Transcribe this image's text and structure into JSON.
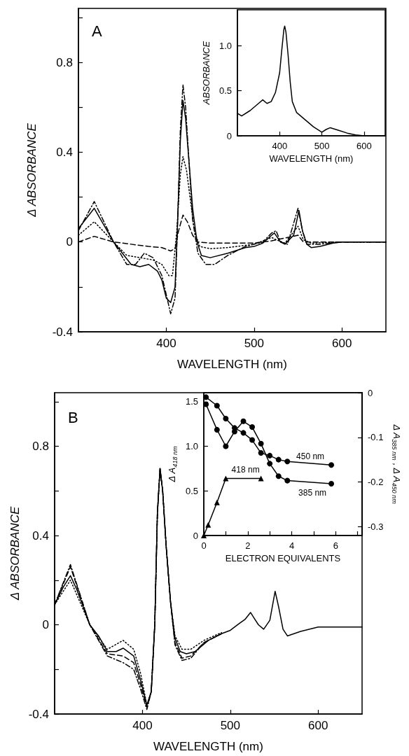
{
  "chart_data": [
    {
      "type": "line",
      "xlabel": "WAVELENGTH (nm)",
      "ylabel": "Δ ABSORBANCE",
      "annotations": [
        "A"
      ],
      "xlim": [
        300,
        650
      ],
      "xticks": [
        400,
        500,
        600
      ],
      "ylim": [
        -0.4,
        1.04
      ],
      "yticks": [
        -0.4,
        {
          "value": -0.2,
          "label": null
        },
        0,
        {
          "value": 0.2,
          "label": null
        },
        0.4,
        {
          "value": 0.6,
          "label": null
        },
        0.8,
        {
          "value": 1,
          "label": null
        }
      ],
      "grid": false,
      "legend": false,
      "marker": "none",
      "series": [
        {
          "color": "#000000",
          "line_style": "solid",
          "x": [
            300,
            318,
            340,
            360,
            370,
            380,
            390,
            395,
            400,
            405,
            410,
            413,
            416,
            419,
            422,
            426,
            430,
            435,
            440,
            450,
            470,
            490,
            500,
            510,
            520,
            523,
            530,
            535,
            545,
            551,
            555,
            560,
            565,
            575,
            590,
            600,
            650
          ],
          "values": [
            0.06,
            0.15,
            0,
            -0.1,
            -0.11,
            -0.1,
            -0.13,
            -0.17,
            -0.25,
            -0.27,
            -0.2,
            0.1,
            0.45,
            0.63,
            0.55,
            0.35,
            0.15,
            0,
            -0.06,
            -0.07,
            -0.05,
            -0.025,
            -0.02,
            -0.005,
            0.03,
            0.04,
            0,
            -0.01,
            0.03,
            0.14,
            0.05,
            -0.01,
            -0.025,
            -0.02,
            -0.005,
            0,
            0
          ]
        },
        {
          "color": "#000000",
          "line_style": "dotted",
          "x": [
            300,
            318,
            340,
            355,
            370,
            385,
            395,
            403,
            407,
            412,
            416,
            419,
            423,
            427,
            432,
            438,
            450,
            470,
            500,
            520,
            525,
            535,
            550,
            556,
            565,
            600,
            650
          ],
          "values": [
            0.03,
            0.09,
            0,
            -0.06,
            -0.07,
            -0.08,
            -0.1,
            -0.15,
            -0.15,
            0.05,
            0.3,
            0.38,
            0.32,
            0.2,
            0.05,
            -0.02,
            -0.03,
            -0.025,
            -0.01,
            0.02,
            0.01,
            -0.005,
            0.07,
            0.01,
            -0.005,
            0,
            0
          ]
        },
        {
          "color": "#000000",
          "line_style": "dashed",
          "x": [
            300,
            318,
            340,
            360,
            380,
            395,
            405,
            410,
            414,
            419,
            424,
            430,
            436,
            450,
            500,
            520,
            550,
            556,
            650
          ],
          "values": [
            0,
            0.025,
            0,
            -0.01,
            -0.02,
            -0.025,
            -0.04,
            -0.03,
            0.05,
            0.12,
            0.09,
            0.03,
            0,
            -0.005,
            -0.005,
            0.005,
            0.03,
            0,
            0
          ]
        },
        {
          "color": "#000000",
          "line_style": "dashdot",
          "x": [
            300,
            318,
            340,
            355,
            365,
            375,
            385,
            395,
            405,
            410,
            413,
            416,
            419,
            422,
            426,
            430,
            436,
            445,
            455,
            470,
            490,
            510,
            520,
            525,
            530,
            538,
            550,
            555,
            560,
            575,
            600,
            650
          ],
          "values": [
            0.05,
            0.18,
            0,
            -0.1,
            -0.1,
            -0.05,
            -0.07,
            -0.15,
            -0.32,
            -0.25,
            0.1,
            0.5,
            0.7,
            0.6,
            0.35,
            0.1,
            -0.05,
            -0.1,
            -0.1,
            -0.06,
            -0.02,
            0,
            0.04,
            0.05,
            0,
            -0.01,
            0.15,
            0.05,
            -0.01,
            -0.01,
            0,
            0
          ]
        }
      ]
    },
    {
      "type": "line",
      "xlabel": "WAVELENGTH (nm)",
      "ylabel": "ABSORBANCE",
      "xlim": [
        300,
        650
      ],
      "xticks": [
        400,
        500,
        600
      ],
      "ylim": [
        0,
        1.4
      ],
      "yticks": [
        0,
        0.5,
        {
          "value": 1,
          "label": "1.0"
        }
      ],
      "grid": false,
      "legend": false,
      "marker": "none",
      "series": [
        {
          "color": "#000000",
          "line_style": "solid",
          "x": [
            300,
            310,
            330,
            350,
            360,
            370,
            380,
            390,
            400,
            405,
            410,
            412,
            415,
            420,
            425,
            430,
            440,
            460,
            480,
            500,
            510,
            520,
            540,
            560,
            580,
            600,
            650
          ],
          "values": [
            0.25,
            0.22,
            0.28,
            0.36,
            0.4,
            0.36,
            0.38,
            0.48,
            0.7,
            0.95,
            1.18,
            1.22,
            1.15,
            0.9,
            0.6,
            0.38,
            0.26,
            0.18,
            0.1,
            0.04,
            0.07,
            0.09,
            0.06,
            0.03,
            0.01,
            0,
            0
          ]
        }
      ]
    },
    {
      "type": "line",
      "xlabel": "WAVELENGTH (nm)",
      "ylabel": "Δ ABSORBANCE",
      "annotations": [
        "B"
      ],
      "xlim": [
        300,
        650
      ],
      "xticks": [
        400,
        500,
        600
      ],
      "ylim": [
        -0.4,
        1.04
      ],
      "yticks": [
        -0.4,
        {
          "value": -0.2,
          "label": null
        },
        0,
        {
          "value": 0.2,
          "label": null
        },
        0.4,
        {
          "value": 0.6,
          "label": null
        },
        0.8,
        {
          "value": 1,
          "label": null
        }
      ],
      "grid": false,
      "legend": false,
      "marker": "none",
      "series": [
        {
          "color": "#000000",
          "line_style": "dotted",
          "x": [
            300,
            318,
            340,
            360,
            378,
            390,
            398,
            405,
            410,
            414,
            417,
            420,
            423,
            427,
            432,
            437,
            445,
            455,
            470,
            490
          ],
          "values": [
            0.09,
            0.2,
            0,
            -0.11,
            -0.07,
            -0.11,
            -0.22,
            -0.36,
            -0.3,
            0,
            0.5,
            0.7,
            0.6,
            0.35,
            0.1,
            -0.05,
            -0.11,
            -0.11,
            -0.07,
            -0.035
          ]
        },
        {
          "color": "#000000",
          "line_style": "dashed",
          "x": [
            300,
            318,
            340,
            360,
            378,
            390,
            398,
            405,
            410,
            414,
            417,
            420,
            423,
            427,
            432,
            437,
            445,
            455,
            470,
            490
          ],
          "values": [
            0.09,
            0.26,
            0,
            -0.13,
            -0.14,
            -0.17,
            -0.27,
            -0.37,
            -0.3,
            0,
            0.5,
            0.7,
            0.6,
            0.35,
            0.1,
            -0.08,
            -0.15,
            -0.14,
            -0.08,
            -0.04
          ]
        },
        {
          "color": "#000000",
          "line_style": "dashdot",
          "x": [
            300,
            318,
            340,
            360,
            378,
            390,
            398,
            405,
            410,
            414,
            417,
            420,
            423,
            427,
            432,
            437,
            445,
            455,
            470,
            490
          ],
          "values": [
            0.09,
            0.27,
            0,
            -0.14,
            -0.17,
            -0.2,
            -0.29,
            -0.38,
            -0.3,
            0,
            0.5,
            0.7,
            0.6,
            0.35,
            0.1,
            -0.09,
            -0.16,
            -0.15,
            -0.08,
            -0.04
          ]
        },
        {
          "color": "#000000",
          "line_style": "solid",
          "x": [
            300,
            310,
            318,
            325,
            340,
            350,
            360,
            370,
            378,
            390,
            398,
            405,
            410,
            414,
            417,
            420,
            423,
            427,
            432,
            437,
            443,
            450,
            460,
            475,
            490,
            500,
            510,
            517,
            523,
            527,
            532,
            538,
            545,
            551,
            555,
            560,
            565,
            580,
            600,
            650
          ],
          "values": [
            0.09,
            0.17,
            0.22,
            0.16,
            0,
            -0.05,
            -0.12,
            -0.12,
            -0.105,
            -0.14,
            -0.25,
            -0.36,
            -0.3,
            0,
            0.5,
            0.7,
            0.6,
            0.35,
            0.1,
            -0.06,
            -0.12,
            -0.13,
            -0.12,
            -0.07,
            -0.04,
            -0.025,
            0.005,
            0.025,
            0.055,
            0.03,
            0,
            -0.02,
            0.02,
            0.15,
            0.08,
            -0.02,
            -0.05,
            -0.03,
            -0.01,
            -0.01
          ]
        }
      ]
    },
    {
      "type": "line",
      "xlabel": "ELECTRON EQUIVALENTS",
      "ylabel": "Δ A$_{418 nm}$",
      "y2label": "Δ A$_{385 nm}$ , Δ A$_{450 nm}$",
      "xlim": [
        0,
        7.2
      ],
      "xticks": [
        0,
        {
          "value": 1,
          "label": null
        },
        2,
        {
          "value": 3,
          "label": null
        },
        4,
        {
          "value": 5,
          "label": null
        },
        6,
        {
          "value": 7,
          "label": null
        }
      ],
      "ylim": [
        0,
        1.6
      ],
      "yticks": [
        0,
        0.5,
        {
          "value": 1,
          "label": "1.0"
        },
        1.5
      ],
      "y2lim": [
        -0.32,
        0
      ],
      "y2ticks": [
        -0.3,
        -0.2,
        -0.1,
        0
      ],
      "grid": false,
      "legend": false,
      "series": [
        {
          "name": "450 nm",
          "color": "#000000",
          "axis": "y2",
          "marker": "circle",
          "line_style": "solid",
          "x": [
            0.1,
            0.6,
            1,
            1.4,
            1.8,
            2.2,
            2.6,
            3,
            3.4,
            3.8,
            5.8
          ],
          "values": [
            -0.01,
            -0.029,
            -0.058,
            -0.079,
            -0.09,
            -0.106,
            -0.135,
            -0.141,
            -0.15,
            -0.154,
            -0.162
          ]
        },
        {
          "name": "385 nm",
          "color": "#000000",
          "axis": "y2",
          "marker": "circle",
          "line_style": "solid",
          "x": [
            0.1,
            0.6,
            1,
            1.4,
            1.8,
            2.2,
            2.6,
            3,
            3.4,
            3.8,
            5.8
          ],
          "values": [
            -0.026,
            -0.083,
            -0.12,
            -0.087,
            -0.064,
            -0.077,
            -0.114,
            -0.159,
            -0.187,
            -0.197,
            -0.204
          ]
        },
        {
          "name": "418 nm",
          "color": "#000000",
          "axis": "y",
          "marker": "triangle",
          "line_style": "solid",
          "x": [
            0,
            0.2,
            0.6,
            1,
            2.6
          ],
          "values": [
            0,
            0.12,
            0.37,
            0.64,
            0.64
          ]
        }
      ]
    }
  ]
}
